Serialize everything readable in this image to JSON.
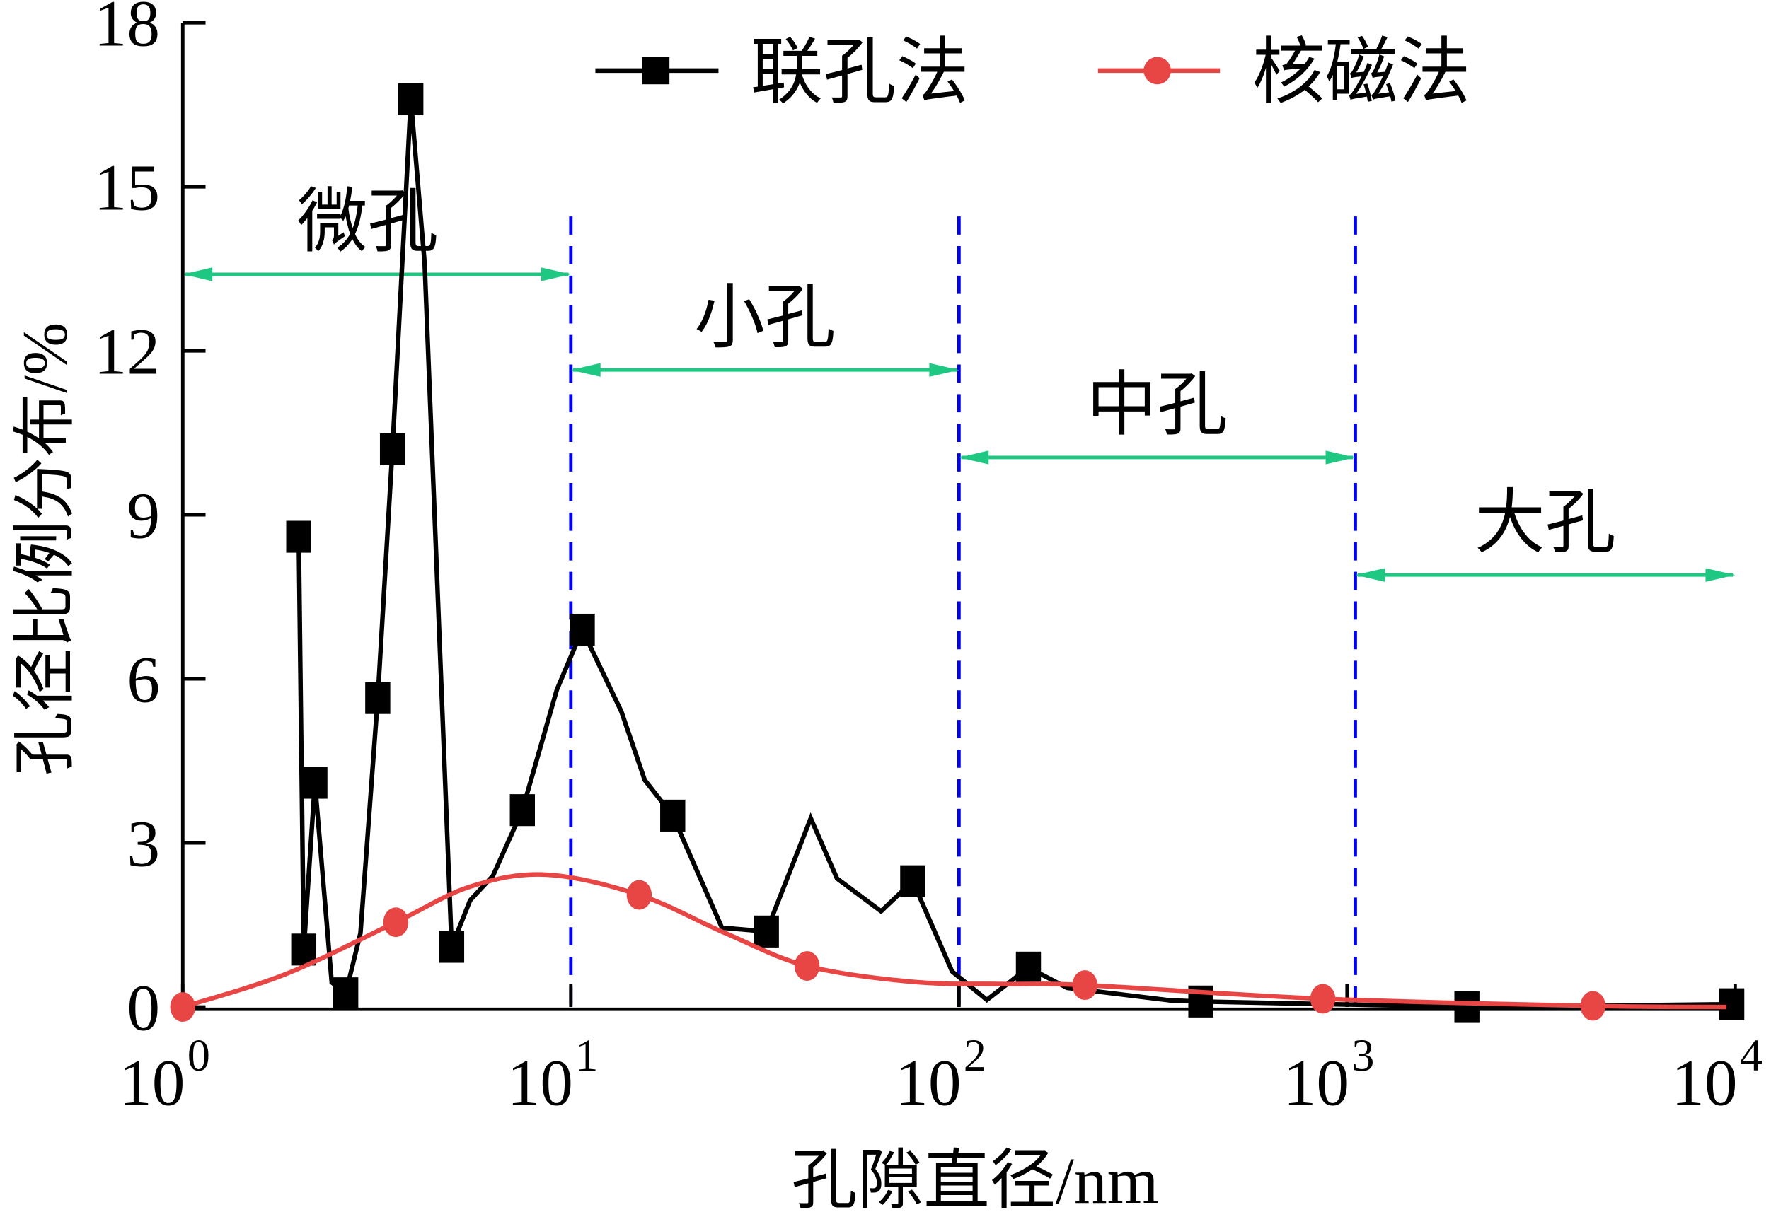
{
  "chart_data": {
    "type": "line",
    "title": "",
    "xlabel": "孔隙直径/nm",
    "ylabel": "孔径比例分布/%",
    "xscale": "log",
    "xlim": [
      1,
      10000
    ],
    "ylim": [
      0,
      18
    ],
    "x_ticks": [
      {
        "base": "10",
        "exp": "0",
        "value": 1
      },
      {
        "base": "10",
        "exp": "1",
        "value": 10
      },
      {
        "base": "10",
        "exp": "2",
        "value": 100
      },
      {
        "base": "10",
        "exp": "3",
        "value": 1000
      },
      {
        "base": "10",
        "exp": "4",
        "value": 10000
      }
    ],
    "y_ticks": [
      "0",
      "3",
      "6",
      "9",
      "12",
      "15",
      "18"
    ],
    "grid": false,
    "legend_position": "top",
    "colors": {
      "series1": "#000000",
      "series2": "#e84545",
      "dividers": "#0000ee",
      "ranges": "#1ec882"
    },
    "series": [
      {
        "name": "联孔法",
        "marker": "square",
        "points": [
          {
            "x": 1.99,
            "y": 8.6,
            "m": true
          },
          {
            "x": 2.05,
            "y": 1.05,
            "m": true
          },
          {
            "x": 2.19,
            "y": 4.1,
            "m": true
          },
          {
            "x": 2.42,
            "y": 0.45,
            "m": false
          },
          {
            "x": 2.63,
            "y": 0.25,
            "m": true
          },
          {
            "x": 2.87,
            "y": 1.35,
            "m": false
          },
          {
            "x": 3.18,
            "y": 5.65,
            "m": true
          },
          {
            "x": 3.47,
            "y": 10.2,
            "m": true
          },
          {
            "x": 3.87,
            "y": 16.6,
            "m": true
          },
          {
            "x": 4.2,
            "y": 13.6,
            "m": false
          },
          {
            "x": 4.93,
            "y": 1.1,
            "m": true
          },
          {
            "x": 5.5,
            "y": 1.95,
            "m": false
          },
          {
            "x": 6.3,
            "y": 2.4,
            "m": false
          },
          {
            "x": 7.5,
            "y": 3.6,
            "m": true
          },
          {
            "x": 9.2,
            "y": 5.8,
            "m": false
          },
          {
            "x": 10.7,
            "y": 6.9,
            "m": true
          },
          {
            "x": 13.5,
            "y": 5.4,
            "m": false
          },
          {
            "x": 15.5,
            "y": 4.15,
            "m": false
          },
          {
            "x": 18.3,
            "y": 3.5,
            "m": true
          },
          {
            "x": 24.5,
            "y": 1.45,
            "m": false
          },
          {
            "x": 31.9,
            "y": 1.38,
            "m": true
          },
          {
            "x": 41.5,
            "y": 3.45,
            "m": false
          },
          {
            "x": 48.5,
            "y": 2.35,
            "m": false
          },
          {
            "x": 63,
            "y": 1.75,
            "m": false
          },
          {
            "x": 76,
            "y": 2.3,
            "m": true
          },
          {
            "x": 96,
            "y": 0.65,
            "m": false
          },
          {
            "x": 118,
            "y": 0.13,
            "m": false
          },
          {
            "x": 151,
            "y": 0.72,
            "m": true
          },
          {
            "x": 190,
            "y": 0.35,
            "m": false
          },
          {
            "x": 350,
            "y": 0.12,
            "m": false
          },
          {
            "x": 420,
            "y": 0.1,
            "m": true
          },
          {
            "x": 2036,
            "y": 0.0,
            "m": true
          },
          {
            "x": 9800,
            "y": 0.05,
            "m": true
          }
        ]
      },
      {
        "name": "核磁法",
        "marker": "circle",
        "smooth": true,
        "points": [
          {
            "x": 1,
            "y": 0.0,
            "m": true
          },
          {
            "x": 1.84,
            "y": 0.6,
            "m": false
          },
          {
            "x": 3.54,
            "y": 1.55,
            "m": true
          },
          {
            "x": 5.5,
            "y": 2.2,
            "m": false
          },
          {
            "x": 8.6,
            "y": 2.42,
            "m": false
          },
          {
            "x": 15,
            "y": 2.05,
            "m": true
          },
          {
            "x": 25,
            "y": 1.35,
            "m": false
          },
          {
            "x": 40.6,
            "y": 0.75,
            "m": true
          },
          {
            "x": 76,
            "y": 0.46,
            "m": false
          },
          {
            "x": 130,
            "y": 0.42,
            "m": false
          },
          {
            "x": 211,
            "y": 0.4,
            "m": true
          },
          {
            "x": 866,
            "y": 0.15,
            "m": true
          },
          {
            "x": 4300,
            "y": 0.02,
            "m": true
          },
          {
            "x": 9500,
            "y": 0.0,
            "m": false
          }
        ]
      }
    ],
    "dividers": [
      10,
      100,
      1050
    ],
    "ranges": [
      {
        "label": "微孔",
        "from": 1,
        "to": 10,
        "y": 13.4
      },
      {
        "label": "小孔",
        "from": 10,
        "to": 100,
        "y": 11.65
      },
      {
        "label": "中孔",
        "from": 100,
        "to": 1050,
        "y": 10.05
      },
      {
        "label": "大孔",
        "from": 1050,
        "to": 10000,
        "y": 7.9
      }
    ]
  }
}
